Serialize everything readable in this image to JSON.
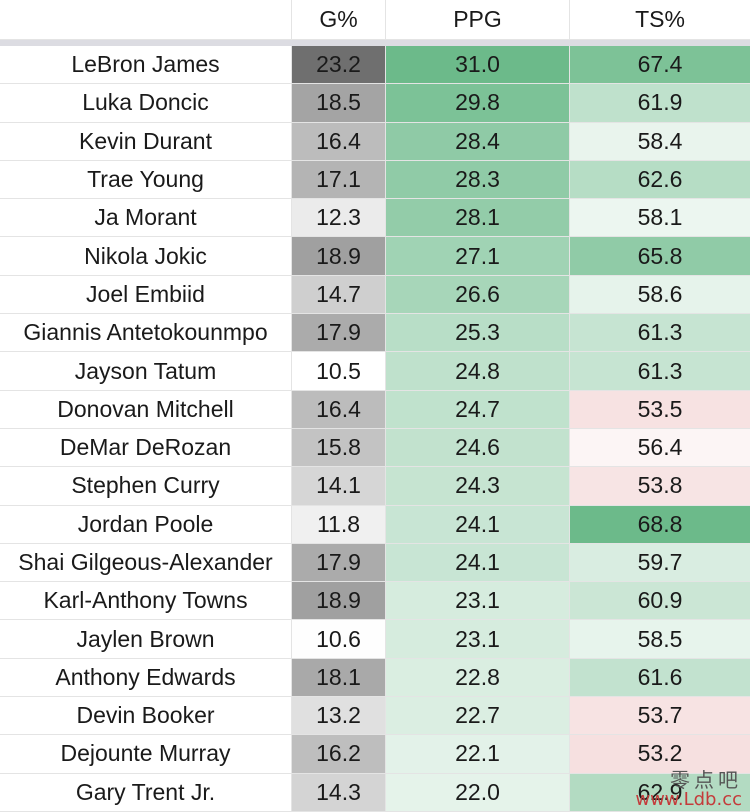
{
  "headers": [
    "",
    "G%",
    "PPG",
    "TS%"
  ],
  "rows": [
    {
      "name": "LeBron James",
      "g": "23.2",
      "ppg": "31.0",
      "ts": "67.4"
    },
    {
      "name": "Luka Doncic",
      "g": "18.5",
      "ppg": "29.8",
      "ts": "61.9"
    },
    {
      "name": "Kevin Durant",
      "g": "16.4",
      "ppg": "28.4",
      "ts": "58.4"
    },
    {
      "name": "Trae Young",
      "g": "17.1",
      "ppg": "28.3",
      "ts": "62.6"
    },
    {
      "name": "Ja Morant",
      "g": "12.3",
      "ppg": "28.1",
      "ts": "58.1"
    },
    {
      "name": "Nikola Jokic",
      "g": "18.9",
      "ppg": "27.1",
      "ts": "65.8"
    },
    {
      "name": "Joel Embiid",
      "g": "14.7",
      "ppg": "26.6",
      "ts": "58.6"
    },
    {
      "name": "Giannis Antetokounmpo",
      "g": "17.9",
      "ppg": "25.3",
      "ts": "61.3"
    },
    {
      "name": "Jayson Tatum",
      "g": "10.5",
      "ppg": "24.8",
      "ts": "61.3"
    },
    {
      "name": "Donovan Mitchell",
      "g": "16.4",
      "ppg": "24.7",
      "ts": "53.5"
    },
    {
      "name": "DeMar DeRozan",
      "g": "15.8",
      "ppg": "24.6",
      "ts": "56.4"
    },
    {
      "name": "Stephen Curry",
      "g": "14.1",
      "ppg": "24.3",
      "ts": "53.8"
    },
    {
      "name": "Jordan Poole",
      "g": "11.8",
      "ppg": "24.1",
      "ts": "68.8"
    },
    {
      "name": "Shai Gilgeous-Alexander",
      "g": "17.9",
      "ppg": "24.1",
      "ts": "59.7"
    },
    {
      "name": "Karl-Anthony Towns",
      "g": "18.9",
      "ppg": "23.1",
      "ts": "60.9"
    },
    {
      "name": "Jaylen Brown",
      "g": "10.6",
      "ppg": "23.1",
      "ts": "58.5"
    },
    {
      "name": "Anthony Edwards",
      "g": "18.1",
      "ppg": "22.8",
      "ts": "61.6"
    },
    {
      "name": "Devin Booker",
      "g": "13.2",
      "ppg": "22.7",
      "ts": "53.7"
    },
    {
      "name": "Dejounte Murray",
      "g": "16.2",
      "ppg": "22.1",
      "ts": "53.2"
    },
    {
      "name": "Gary Trent Jr.",
      "g": "14.3",
      "ppg": "22.0",
      "ts": "62.9"
    }
  ],
  "colors": {
    "gray_max": "#6f6f6f",
    "gray_min": "#ffffff",
    "green_max": "#6cba8a",
    "green_min": "#ffffff",
    "red_min": "#f6e0e0"
  },
  "watermark": {
    "cn": "零点吧",
    "url": "www.Ldb.cc"
  }
}
